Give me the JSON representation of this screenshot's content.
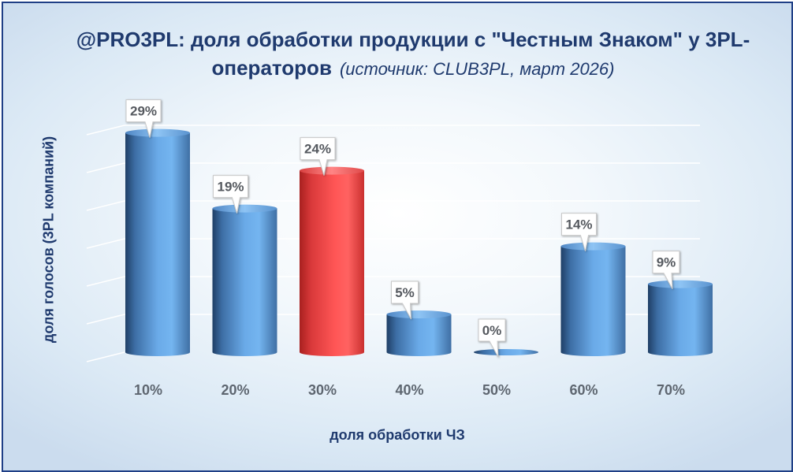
{
  "title": {
    "brand": "@PRO3PL",
    "main": ": доля обработки продукции с \"Честным Знаком\" у 3PL-операторов",
    "source": "(источник: CLUB3PL, март 2026)"
  },
  "chart_data": {
    "type": "bar",
    "title": "@PRO3PL: доля обработки продукции с \"Честным Знаком\" у 3PL-операторов (источник: CLUB3PL, март 2026)",
    "xlabel": "доля обработки ЧЗ",
    "ylabel": "доля голосов (3PL компаний)",
    "categories": [
      "10%",
      "20%",
      "30%",
      "40%",
      "50%",
      "60%",
      "70%"
    ],
    "values": [
      29,
      19,
      24,
      5,
      0,
      14,
      9
    ],
    "data_labels": [
      "29%",
      "19%",
      "24%",
      "5%",
      "0%",
      "14%",
      "9%"
    ],
    "ylim": [
      0,
      30
    ],
    "grid": true,
    "legend": "none",
    "bar_style": "cylinder",
    "colors": {
      "default": "#5a9ad8",
      "highlight": "#e8403f",
      "highlight_category": "30%"
    }
  }
}
